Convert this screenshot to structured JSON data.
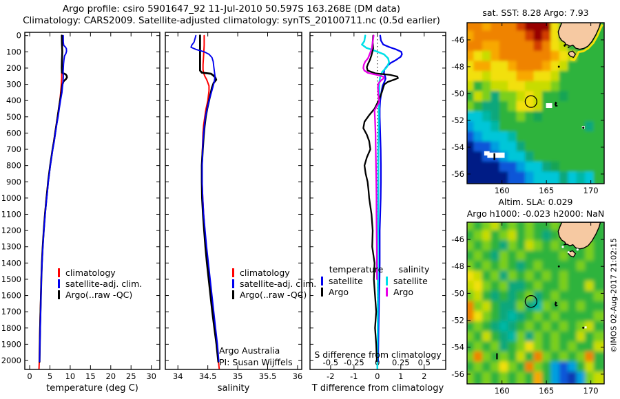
{
  "titles": {
    "line1": "Argo profile: csiro 5901647_92 11-Jul-2010 50.597S 163.268E (DM data)",
    "line2": "Climatology: CARS2009. Satellite-adjusted climatology: synTS_20100711.nc (0.5d earlier)"
  },
  "credit": {
    "line1": "Argo Australia",
    "line2": "PI: Susan Wijffels"
  },
  "watermark": "©IMOS 02-Aug-2017 21:02:15",
  "colors": {
    "climatology": "#ff0000",
    "satellite": "#0000ee",
    "argo": "#000000",
    "sal_satellite": "#00e0e8",
    "sal_argo": "#e800e8",
    "land": "#f6c9a2",
    "shelf_fringe": "#f2e00a"
  },
  "map_palette": {
    "D": "#970000",
    "R": "#d23c00",
    "O": "#ef8300",
    "o": "#f8a800",
    "Y": "#f2e00a",
    "y": "#c8dc00",
    "g": "#7ccf1c",
    "G": "#2db33e",
    "s": "#14a455",
    "t": "#0ba77c",
    "T": "#00b7a6",
    "c": "#00c6d8",
    "C": "#009fe0",
    "b": "#0a57d8",
    "B": "#0a38b0",
    "N": "#051f86"
  },
  "chart_data": [
    {
      "id": "temperature_profile",
      "type": "line",
      "xlabel": "temperature (deg C)",
      "x_ticks": [
        0,
        5,
        10,
        15,
        20,
        25,
        30
      ],
      "xlim": [
        -1.2,
        32.1
      ],
      "ylim": [
        -20,
        2055
      ],
      "depth_ticks": [
        0,
        100,
        200,
        300,
        400,
        500,
        600,
        700,
        800,
        900,
        1000,
        1100,
        1200,
        1300,
        1400,
        1500,
        1600,
        1700,
        1800,
        1900,
        2000
      ],
      "legend": [
        {
          "label": "climatology",
          "color": "#ff0000"
        },
        {
          "label": "satellite-adj. clim.",
          "color": "#0000ee"
        },
        {
          "label": "Argo(..raw -QC)",
          "color": "#000000"
        }
      ],
      "series": [
        {
          "name": "climatology",
          "color": "#ff0000",
          "width": 2,
          "depth": [
            0,
            100,
            200,
            235,
            245,
            260,
            280,
            300,
            350,
            400,
            450,
            500,
            600,
            700,
            800,
            900,
            1000,
            1100,
            1200,
            1300,
            1400,
            1500,
            1600,
            1700,
            1800,
            1900,
            2000,
            2050
          ],
          "values": [
            8.0,
            8.0,
            7.9,
            7.9,
            7.9,
            7.9,
            7.85,
            7.8,
            7.65,
            7.45,
            7.15,
            6.85,
            6.25,
            5.65,
            5.05,
            4.55,
            4.1,
            3.75,
            3.45,
            3.2,
            3.0,
            2.85,
            2.75,
            2.63,
            2.52,
            2.44,
            2.38,
            2.3
          ]
        },
        {
          "name": "argo",
          "color": "#000000",
          "width": 2.6,
          "depth": [
            0,
            50,
            100,
            150,
            200,
            228,
            238,
            248,
            258,
            268,
            282,
            300,
            330,
            360,
            400,
            450,
            500,
            550,
            600,
            650,
            700,
            750,
            800,
            850,
            900,
            950,
            1000,
            1100,
            1200,
            1300,
            1400,
            1500,
            1600,
            1700,
            1800,
            1900,
            2008
          ],
          "values": [
            7.93,
            7.95,
            8.05,
            7.95,
            7.9,
            7.95,
            8.85,
            9.15,
            9.2,
            8.95,
            8.35,
            8.1,
            7.9,
            7.75,
            7.5,
            7.2,
            6.9,
            6.6,
            6.3,
            6.0,
            5.65,
            5.35,
            5.05,
            4.8,
            4.55,
            4.35,
            4.15,
            3.78,
            3.47,
            3.22,
            3.02,
            2.88,
            2.77,
            2.67,
            2.57,
            2.5,
            2.44
          ]
        },
        {
          "name": "satellite-adj-clim",
          "color": "#0000ee",
          "width": 2,
          "depth": [
            0,
            40,
            60,
            70,
            80,
            95,
            110,
            125,
            150,
            175,
            200,
            225,
            250,
            280,
            300,
            350,
            400,
            450,
            500,
            550,
            600,
            650,
            700,
            750,
            800,
            850,
            900,
            950,
            1000,
            1100,
            1200,
            1300,
            1400,
            1500,
            1600,
            1700,
            1800,
            1900,
            2005
          ],
          "values": [
            8.28,
            8.3,
            8.4,
            8.8,
            9.05,
            9.1,
            8.95,
            8.6,
            8.45,
            8.35,
            8.3,
            8.25,
            8.3,
            8.25,
            8.15,
            7.95,
            7.6,
            7.3,
            7.0,
            6.65,
            6.35,
            6.05,
            5.7,
            5.4,
            5.1,
            4.85,
            4.6,
            4.4,
            4.2,
            3.82,
            3.5,
            3.25,
            3.05,
            2.9,
            2.8,
            2.7,
            2.6,
            2.52,
            2.45
          ]
        }
      ]
    },
    {
      "id": "salinity_profile",
      "type": "line",
      "xlabel": "salinity",
      "x_ticks": [
        34,
        34.5,
        35,
        35.5,
        36
      ],
      "xlim": [
        33.79,
        36.07
      ],
      "ylim": [
        -20,
        2055
      ],
      "legend": [
        {
          "label": "climatology",
          "color": "#ff0000"
        },
        {
          "label": "satellite-adj. clim.",
          "color": "#0000ee"
        },
        {
          "label": "Argo(..raw -QC)",
          "color": "#000000"
        }
      ],
      "series": [
        {
          "name": "climatology",
          "color": "#ff0000",
          "width": 2,
          "depth": [
            0,
            60,
            120,
            180,
            210,
            230,
            250,
            270,
            290,
            310,
            340,
            370,
            400,
            450,
            500,
            550,
            600,
            650,
            700,
            750,
            800,
            850,
            900,
            950,
            1000,
            1100,
            1200,
            1300,
            1400,
            1500,
            1600,
            1700,
            1800,
            1900,
            2000,
            2050
          ],
          "values": [
            34.44,
            34.44,
            34.43,
            34.42,
            34.42,
            34.43,
            34.45,
            34.48,
            34.5,
            34.52,
            34.52,
            34.51,
            34.5,
            34.47,
            34.45,
            34.43,
            34.42,
            34.415,
            34.41,
            34.405,
            34.4,
            34.4,
            34.405,
            34.41,
            34.415,
            34.43,
            34.45,
            34.475,
            34.5,
            34.53,
            34.56,
            34.59,
            34.62,
            34.65,
            34.675,
            34.69
          ]
        },
        {
          "name": "argo",
          "color": "#000000",
          "width": 2.8,
          "depth": [
            0,
            60,
            120,
            180,
            215,
            228,
            235,
            245,
            258,
            272,
            290,
            320,
            360,
            400,
            450,
            500,
            560,
            620,
            700,
            800,
            900,
            1000,
            1100,
            1200,
            1300,
            1400,
            1500,
            1600,
            1700,
            1800,
            1900,
            2008
          ],
          "values": [
            34.37,
            34.37,
            34.37,
            34.37,
            34.37,
            34.4,
            34.555,
            34.59,
            34.625,
            34.64,
            34.6,
            34.57,
            34.545,
            34.52,
            34.49,
            34.465,
            34.445,
            34.43,
            34.415,
            34.4,
            34.4,
            34.405,
            34.42,
            34.44,
            34.46,
            34.485,
            34.515,
            34.545,
            34.575,
            34.61,
            34.645,
            34.675
          ]
        },
        {
          "name": "satellite-adj-clim",
          "color": "#0000ee",
          "width": 1.9,
          "depth": [
            0,
            40,
            60,
            72,
            85,
            100,
            115,
            135,
            160,
            190,
            220,
            250,
            280,
            310,
            350,
            400,
            450,
            500,
            550,
            600,
            650,
            700,
            800,
            900,
            1000,
            1100,
            1200,
            1300,
            1400,
            1500,
            1600,
            1700,
            1800,
            1900,
            2005
          ],
          "values": [
            34.3,
            34.27,
            34.23,
            34.22,
            34.3,
            34.44,
            34.52,
            34.57,
            34.59,
            34.6,
            34.61,
            34.62,
            34.61,
            34.59,
            34.56,
            34.52,
            34.49,
            34.46,
            34.445,
            34.43,
            34.42,
            34.415,
            34.405,
            34.405,
            34.415,
            34.43,
            34.455,
            34.48,
            34.51,
            34.54,
            34.57,
            34.6,
            34.63,
            34.66,
            34.685
          ]
        }
      ]
    },
    {
      "id": "difference_profile",
      "type": "line",
      "xlabel": "T difference from climatology",
      "x_ticks": [
        -2,
        -1,
        0,
        1,
        2
      ],
      "xlim": [
        -2.88,
        2.92
      ],
      "ylim": [
        -20,
        2055
      ],
      "zero_line": true,
      "s_axis": {
        "label": "S difference from climatology",
        "ticks": [
          -0.5,
          -0.25,
          0,
          0.25,
          0.5
        ],
        "scale_ratio": 4
      },
      "legend": {
        "temperature": {
          "header": "temperature",
          "items": [
            {
              "label": "satellite",
              "color": "#0000ee"
            },
            {
              "label": "Argo",
              "color": "#000000"
            }
          ]
        },
        "salinity": {
          "header": "salinity",
          "items": [
            {
              "label": "satellite",
              "color": "#00e0e8"
            },
            {
              "label": "Argo",
              "color": "#e800e8"
            }
          ]
        }
      },
      "series": [
        {
          "name": "dT_satellite",
          "axis": "T",
          "color": "#0000ee",
          "width": 2.3,
          "depth": [
            0,
            30,
            55,
            70,
            85,
            100,
            115,
            130,
            150,
            170,
            190,
            210,
            230,
            250,
            265,
            285,
            310,
            350,
            400,
            450,
            500,
            600,
            700,
            800,
            900,
            1000,
            1100,
            1200,
            1300,
            1400,
            1500,
            1600,
            1700,
            1800,
            1900,
            2005
          ],
          "values": [
            0.12,
            0.15,
            0.25,
            0.5,
            0.8,
            1.02,
            1.05,
            1.0,
            0.8,
            0.55,
            0.4,
            0.3,
            0.28,
            0.33,
            0.35,
            0.3,
            0.22,
            0.17,
            0.12,
            0.1,
            0.1,
            0.12,
            0.14,
            0.15,
            0.15,
            0.14,
            0.12,
            0.1,
            0.1,
            0.1,
            0.09,
            0.07,
            0.06,
            0.05,
            0.04,
            0.03
          ]
        },
        {
          "name": "dS_satellite",
          "axis": "S",
          "color": "#00e0e8",
          "width": 2.5,
          "depth": [
            0,
            35,
            55,
            75,
            95,
            115,
            140,
            165,
            195,
            225,
            255,
            290,
            330,
            380,
            450,
            550,
            700,
            900,
            1100,
            1300,
            1500,
            1700,
            1900,
            2055
          ],
          "values": [
            -0.13,
            -0.14,
            -0.165,
            -0.12,
            -0.02,
            0.07,
            0.115,
            0.125,
            0.1,
            0.05,
            0.03,
            0.02,
            0.02,
            0.02,
            0.015,
            0.015,
            0.01,
            0.01,
            0.008,
            0.006,
            0.005,
            0.004,
            0.002,
            0.0
          ]
        },
        {
          "name": "dT_argo",
          "axis": "T",
          "color": "#000000",
          "width": 2.3,
          "depth": [
            0,
            40,
            80,
            120,
            150,
            175,
            195,
            215,
            232,
            242,
            252,
            262,
            272,
            285,
            300,
            320,
            345,
            375,
            410,
            450,
            490,
            530,
            570,
            610,
            650,
            700,
            750,
            800,
            850,
            900,
            950,
            1000,
            1100,
            1200,
            1300,
            1400,
            1500,
            1600,
            1700,
            1800,
            1900,
            2005
          ],
          "values": [
            -0.18,
            -0.2,
            -0.18,
            -0.25,
            -0.32,
            -0.4,
            -0.45,
            -0.42,
            -0.1,
            0.55,
            0.85,
            0.88,
            0.7,
            0.45,
            0.3,
            0.25,
            0.2,
            0.12,
            0.02,
            -0.12,
            -0.35,
            -0.55,
            -0.6,
            -0.45,
            -0.35,
            -0.3,
            -0.45,
            -0.55,
            -0.5,
            -0.42,
            -0.38,
            -0.35,
            -0.25,
            -0.2,
            -0.22,
            -0.12,
            -0.15,
            -0.1,
            -0.05,
            -0.1,
            -0.05,
            -0.02
          ]
        },
        {
          "name": "dS_argo",
          "axis": "S",
          "color": "#e800e8",
          "width": 2.3,
          "depth": [
            0,
            40,
            80,
            110,
            140,
            160,
            180,
            200,
            215,
            230,
            240,
            252,
            262,
            275,
            295,
            320,
            360,
            410,
            460,
            520,
            600,
            700,
            800,
            900,
            1000,
            1100,
            1200,
            1300,
            1400,
            1500
          ],
          "values": [
            -0.04,
            -0.05,
            -0.06,
            -0.08,
            -0.1,
            -0.13,
            -0.145,
            -0.15,
            -0.14,
            -0.1,
            -0.02,
            0.06,
            0.07,
            0.04,
            0.01,
            0.005,
            0.01,
            0.02,
            -0.03,
            -0.025,
            -0.02,
            -0.018,
            -0.015,
            -0.012,
            -0.01,
            -0.01,
            -0.008,
            -0.006,
            -0.005,
            -0.004
          ]
        }
      ]
    },
    {
      "id": "sst_map",
      "type": "heatmap",
      "title": "sat. SST: 8.28 Argo: 7.93",
      "x_ticks": [
        160,
        165,
        170
      ],
      "y_ticks": [
        -46,
        -48,
        -50,
        -52,
        -54,
        -56
      ],
      "lon_range": [
        156.07,
        171.5
      ],
      "lat_range": [
        -44.72,
        -56.72
      ],
      "float_marker": {
        "lon": 163.27,
        "lat": -50.6
      },
      "islands": [
        "Snares",
        "Auckland Is",
        "Campbell Is",
        "Macquarie Is"
      ],
      "grid": [
        "OOoOOORDDDYGGGGG",
        "oOOOOOORDRYGGGGG",
        "OOooOOOOROYyGGGG",
        "oYyoOOOOOOoYyGGG",
        "YooYYoOOOoYyGGGG",
        "YYyYYYooYYyGGGGG",
        "yGgyyYYyyygGGGGG",
        "GygtggyYyGGsGGGG",
        "gGttGgYYyGGGGGGG",
        "ccTtGGgGsGGGGGGG",
        "CccTGGGGGGGGGGtG",
        "bCcccTGGGGGGGGGG",
        "NbbCcctGGGGGGGGG",
        "NNbbCcctGGGGGGGG",
        "NNNNbbCcctsGGGGG",
        "NNNNNbbCccctcTcG"
      ]
    },
    {
      "id": "sla_map",
      "type": "heatmap",
      "title_line1": "Altim. SLA: 0.029",
      "title_line2": "Argo h1000: -0.023 h2000: NaN",
      "x_ticks": [
        160,
        165,
        170
      ],
      "y_ticks": [
        -46,
        -48,
        -50,
        -52,
        -54,
        -56
      ],
      "lon_range": [
        156.07,
        171.5
      ],
      "lat_range": [
        -44.72,
        -56.72
      ],
      "float_marker": {
        "lon": 163.27,
        "lat": -50.6
      },
      "islands": [
        "Snares",
        "Auckland Is",
        "Campbell Is",
        "Macquarie Is"
      ],
      "grid": [
        "gGgyGgGgGGgGGGGG",
        "GgyGgyGgGtGgGGGG",
        "gGgGtgGygGgGGGgG",
        "GgGtgGgGGGGgGGgG",
        "gGgGgGtGgGGGGgGG",
        "YyGgtgGgGgGgGGGG",
        "yYgGgttGgGGgGGyG",
        "gyGtGtGgtGgGGGGg",
        "OgyGttgtTgGgGgGG",
        "OYgGtTtGgGgGGGGg",
        "GgGtTtGgGgGgGgyG",
        "gGyGtTgtgGgGGyGg",
        "GgGgtGgYgGgGgGGy",
        "gOgGgGyGOgGgGgOG",
        "GgGgYgGOgGCbCGyG",
        "gGgGgGgGoGCbBCgy"
      ]
    }
  ]
}
